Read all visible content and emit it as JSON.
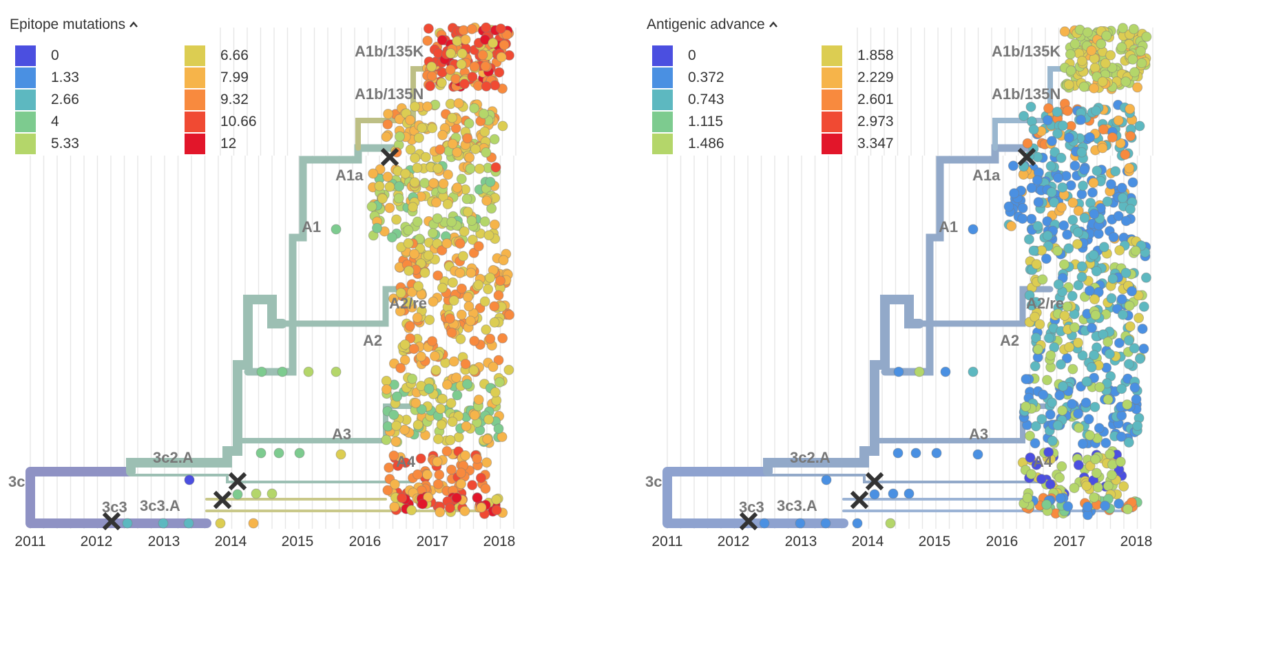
{
  "panels": [
    {
      "id": "epitope",
      "title": "Epitope mutations",
      "legend": [
        {
          "label": "0",
          "color": "#4B4FE0"
        },
        {
          "label": "1.33",
          "color": "#4A90E2"
        },
        {
          "label": "2.66",
          "color": "#5DB8C0"
        },
        {
          "label": "4",
          "color": "#7DCB8F"
        },
        {
          "label": "5.33",
          "color": "#B4D66A"
        },
        {
          "label": "6.66",
          "color": "#DCCD52"
        },
        {
          "label": "7.99",
          "color": "#F6B44A"
        },
        {
          "label": "9.32",
          "color": "#F88A3E"
        },
        {
          "label": "10.66",
          "color": "#F04A33"
        },
        {
          "label": "12",
          "color": "#E2162A"
        }
      ]
    },
    {
      "id": "antigenic",
      "title": "Antigenic advance",
      "legend": [
        {
          "label": "0",
          "color": "#4B4FE0"
        },
        {
          "label": "0.372",
          "color": "#4A90E2"
        },
        {
          "label": "0.743",
          "color": "#5DB8C0"
        },
        {
          "label": "1.115",
          "color": "#7DCB8F"
        },
        {
          "label": "1.486",
          "color": "#B4D66A"
        },
        {
          "label": "1.858",
          "color": "#DCCD52"
        },
        {
          "label": "2.229",
          "color": "#F6B44A"
        },
        {
          "label": "2.601",
          "color": "#F88A3E"
        },
        {
          "label": "2.973",
          "color": "#F04A33"
        },
        {
          "label": "3.347",
          "color": "#E2162A"
        }
      ]
    }
  ],
  "x_axis": {
    "years": [
      "2011",
      "2012",
      "2013",
      "2014",
      "2015",
      "2016",
      "2017",
      "2018"
    ]
  },
  "clade_labels": [
    "3c",
    "3c2.A",
    "3c3",
    "3c3.A",
    "A1",
    "A1a",
    "A1b/135K",
    "A1b/135N",
    "A2",
    "A2/re",
    "A3",
    "A4"
  ]
}
